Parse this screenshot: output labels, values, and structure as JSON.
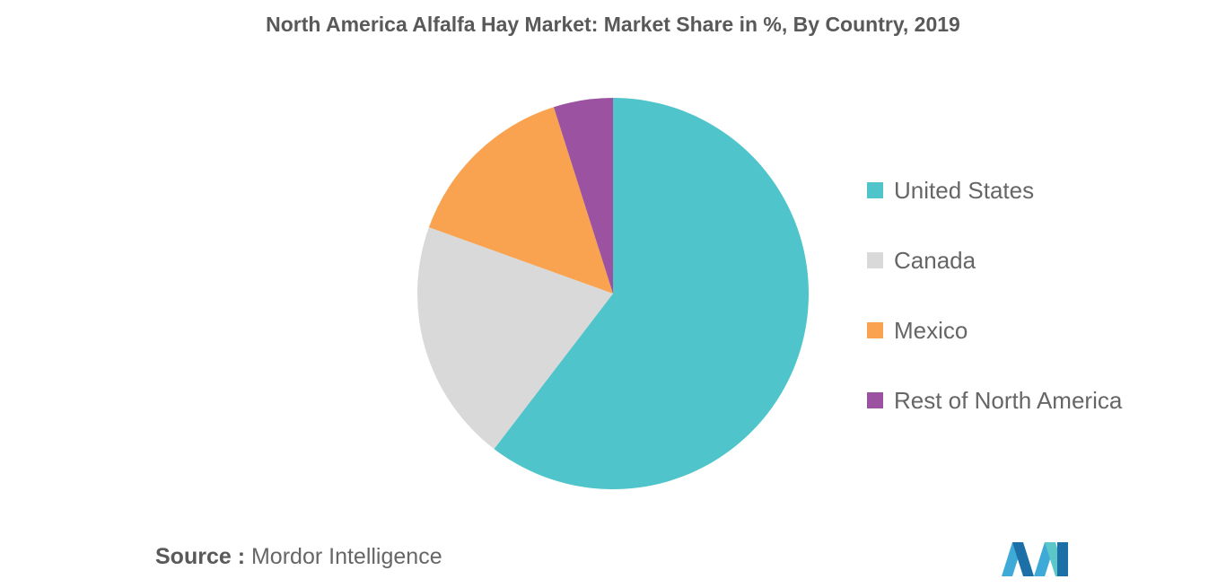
{
  "chart_data": {
    "type": "pie",
    "title": "North America Alfalfa Hay Market: Market Share in %, By Country, 2019",
    "categories": [
      "United States",
      "Canada",
      "Mexico",
      "Rest of North America"
    ],
    "values": [
      60.4,
      20.1,
      14.6,
      4.9
    ],
    "colors": [
      "#4fc4ca",
      "#d9d9d9",
      "#f9a350",
      "#9b52a0"
    ],
    "legend_position": "right"
  },
  "source": {
    "label": "Source :",
    "text": "Mordor Intelligence"
  },
  "logo": {
    "icon": "mordor-intelligence-logo-icon",
    "colors": [
      "#3fa9d8",
      "#1c6fa7",
      "#5cc7c9"
    ]
  }
}
